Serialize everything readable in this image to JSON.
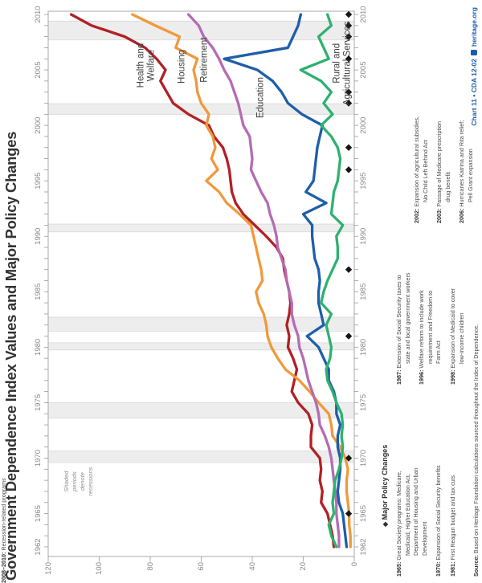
{
  "title": "Government Dependence Index Values and Major Policy Changes",
  "colors": {
    "health_welfare": "#b22025",
    "housing": "#f0993c",
    "retirement": "#b46cb3",
    "education": "#1f5ea9",
    "rural": "#2eb170",
    "recession_band": "#ededed",
    "recession_band_edge": "#d9d9d9",
    "frame": "#a9a9a9",
    "tick": "#9a9a9a",
    "axis_label": "#8a8a8a",
    "marker": "#161616",
    "credit_blue": "#1b5dab"
  },
  "chart_data": {
    "type": "line",
    "title": "Government Dependence Index Values and Major Policy Changes",
    "xlabel": "",
    "ylabel": "",
    "x_axis": {
      "min": 1962,
      "max": 2010,
      "labeled_ticks": [
        1962,
        1965,
        1970,
        1975,
        1980,
        1985,
        1990,
        1995,
        2000,
        2005,
        2010
      ],
      "minor_tick_every": 1,
      "labels_on_both_sides": true
    },
    "y_axis": {
      "min": 0,
      "max": 120,
      "ticks": [
        0,
        20,
        40,
        60,
        80,
        100,
        120
      ]
    },
    "grid": false,
    "years": [
      1962,
      1963,
      1964,
      1965,
      1966,
      1967,
      1968,
      1969,
      1970,
      1971,
      1972,
      1973,
      1974,
      1975,
      1976,
      1977,
      1978,
      1979,
      1980,
      1981,
      1982,
      1983,
      1984,
      1985,
      1986,
      1987,
      1988,
      1989,
      1990,
      1991,
      1992,
      1993,
      1994,
      1995,
      1996,
      1997,
      1998,
      1999,
      2000,
      2001,
      2002,
      2003,
      2004,
      2005,
      2006,
      2007,
      2008,
      2009,
      2010
    ],
    "series": [
      {
        "id": "health-welfare",
        "name": "Health and Welfare",
        "color": "#b22025",
        "label": {
          "lines": [
            "Health and",
            "Welfare"
          ],
          "year": 2005.4,
          "value": 81.5
        },
        "values": [
          8,
          8.5,
          9.5,
          10.5,
          13,
          12.5,
          13.5,
          13,
          13.5,
          17,
          17,
          16.5,
          18,
          22,
          24.5,
          23.5,
          22.5,
          24,
          26,
          25.5,
          26.5,
          25.5,
          25,
          25.5,
          26.5,
          27.5,
          28,
          30.5,
          34.5,
          39,
          43.5,
          46.5,
          48,
          48.5,
          49,
          50,
          51.5,
          55,
          57,
          65,
          71,
          73.5,
          76,
          74,
          77.5,
          82,
          90,
          103,
          111
        ]
      },
      {
        "id": "housing",
        "name": "Housing",
        "color": "#f0993c",
        "label": {
          "lines": [
            "Housing"
          ],
          "year": 2005.3,
          "value": 67.5
        },
        "values": [
          1.5,
          1.5,
          2,
          2,
          2.5,
          3,
          3,
          2.5,
          3.5,
          5.5,
          8.5,
          9,
          10,
          14,
          17.5,
          21.5,
          27,
          30,
          32.5,
          34,
          34.5,
          35.5,
          37.5,
          38.5,
          36,
          36.5,
          37.5,
          38.5,
          39.5,
          40.5,
          45,
          50,
          53,
          58,
          53.5,
          56,
          54.5,
          55.5,
          58,
          57,
          60,
          61.5,
          62,
          63,
          61.5,
          70,
          68.5,
          78,
          87
        ]
      },
      {
        "id": "retirement",
        "name": "Retirement",
        "color": "#b46cb3",
        "label": {
          "lines": [
            "Retirement"
          ],
          "year": 2005.9,
          "value": 58.5
        },
        "values": [
          6,
          6,
          6.5,
          7,
          7,
          7.5,
          8,
          8.5,
          9,
          10,
          11.5,
          13.5,
          14,
          15,
          16.5,
          18,
          19,
          20,
          21.5,
          22,
          23.5,
          24.5,
          24.5,
          25.5,
          26.5,
          27,
          28.5,
          30,
          30.5,
          31.5,
          33,
          34,
          36.5,
          38.5,
          40.5,
          40,
          40.5,
          41,
          43.5,
          44.5,
          45.5,
          47,
          48.5,
          51,
          53,
          55.5,
          59,
          61,
          65
        ]
      },
      {
        "id": "education",
        "name": "Education",
        "color": "#1f5ea9",
        "label": {
          "lines": [
            "Education"
          ],
          "year": 2002.5,
          "value": 36.5
        },
        "values": [
          3,
          3.5,
          4,
          4.5,
          6,
          6.5,
          6,
          5.5,
          5.5,
          6.5,
          6.5,
          5.5,
          7,
          7,
          8,
          10,
          10,
          12,
          14,
          18.5,
          12,
          13,
          14,
          14,
          13.5,
          14,
          15.5,
          16,
          16.5,
          16.5,
          20,
          11,
          19,
          16,
          15.5,
          15,
          14.5,
          13.5,
          12.5,
          20.5,
          26,
          28.5,
          32,
          38,
          51,
          26,
          24,
          22,
          21
        ]
      },
      {
        "id": "rural",
        "name": "Rural and Agricultural Services",
        "color": "#2eb170",
        "label": {
          "lines": [
            "Rural and",
            "Agricultural Services"
          ],
          "year": 2005.6,
          "value": 4.6
        },
        "values": [
          7,
          9,
          10,
          8,
          8.5,
          8,
          7.5,
          6,
          5,
          4.5,
          5,
          4.5,
          5,
          7,
          8.5,
          10.5,
          11,
          9.5,
          9,
          10,
          11,
          9,
          13,
          12,
          10.5,
          8.5,
          6.5,
          6.5,
          7,
          4.5,
          9,
          8.5,
          8,
          6.5,
          6,
          5.5,
          6.5,
          9,
          13,
          8.5,
          12,
          9,
          13,
          21,
          10,
          12,
          14,
          9,
          10.5
        ]
      }
    ],
    "recessions": [
      [
        1969.6,
        1970.65
      ],
      [
        1973.6,
        1975.0
      ],
      [
        1979.75,
        1980.4
      ],
      [
        1981.45,
        1982.7
      ],
      [
        1990.4,
        1991.1
      ],
      [
        2001.0,
        2001.95
      ],
      [
        2007.7,
        2009.4
      ]
    ],
    "recession_note": {
      "lines": [
        "Shaded",
        "periods",
        "denote",
        "recessions"
      ],
      "year": 1967.9,
      "value": 108
    },
    "policy_markers": {
      "symbol": "◆",
      "value": 2.2,
      "years": [
        1965,
        1970,
        1981,
        1987,
        1996,
        1998,
        2002,
        2003,
        2006,
        2008,
        2009,
        2010
      ]
    }
  },
  "notes": {
    "heading_icon": "◆",
    "heading": "Major Policy Changes",
    "col1": [
      {
        "label": "1965:",
        "lines": [
          "Great Society programs: Medicare,",
          "Medicaid, Higher Education Act,",
          "Department of Housing and Urban",
          "Development"
        ]
      },
      {
        "label": "1970:",
        "lines": [
          "Expansion of Social Security benefits"
        ]
      },
      {
        "label": "1981:",
        "lines": [
          "First Reagan budget and tax cuts"
        ]
      }
    ],
    "col2": [
      {
        "label": "1987:",
        "lines": [
          "Extension of Social Security taxes to",
          "state and local government workers"
        ]
      },
      {
        "label": "1996:",
        "lines": [
          "Welfare reform to include work",
          "requirement and Freedom to",
          "Farm Act"
        ]
      },
      {
        "label": "1998:",
        "lines": [
          "Expansion of Medicaid to cover",
          "low-income children"
        ]
      }
    ],
    "col3": [
      {
        "label": "2002:",
        "lines": [
          "Expansion of agricultural subsidies,",
          "No Child Left Behind Act"
        ]
      },
      {
        "label": "2003:",
        "lines": [
          "Passage of Medicare prescription",
          "drug benefit"
        ]
      },
      {
        "label": "2006:",
        "lines": [
          "Hurricanes Katrina and Rita relief;",
          "Pell Grant expansion"
        ]
      }
    ],
    "col4": {
      "label": "2008–2010:",
      "lines": [
        "Recession-related programs"
      ]
    }
  },
  "footer": {
    "source_label": "Source:",
    "source_text": "Based on Heritage Foundation calculations sourced throughout the Index of Dependence.",
    "credit": "Chart 11 • CDA 12-02",
    "site": "heritage.org"
  }
}
